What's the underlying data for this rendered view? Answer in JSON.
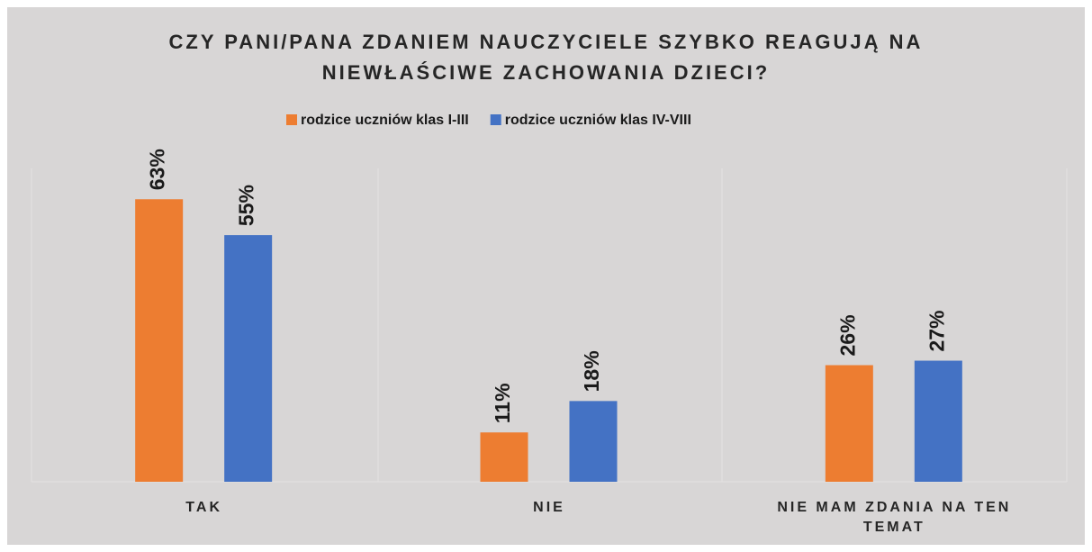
{
  "chart_data": {
    "type": "bar",
    "title": "CZY PANI/PANA ZDANIEM NAUCZYCIELE SZYBKO REAGUJĄ NA NIEWŁAŚCIWE ZACHOWANIA DZIECI?",
    "categories": [
      "TAK",
      "NIE",
      "NIE MAM ZDANIA NA TEN TEMAT"
    ],
    "series": [
      {
        "name": "rodzice uczniów klas I-III",
        "color": "#ed7d31",
        "values": [
          63,
          11,
          26
        ],
        "value_labels": [
          "63%",
          "11%",
          "26%"
        ]
      },
      {
        "name": "rodzice uczniów klas IV-VIII",
        "color": "#4472c4",
        "values": [
          55,
          18,
          27
        ],
        "value_labels": [
          "55%",
          "18%",
          "27%"
        ]
      }
    ],
    "legend": "top"
  }
}
